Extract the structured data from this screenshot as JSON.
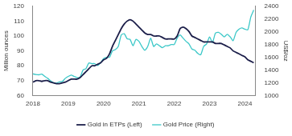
{
  "chart_data": {
    "type": "line",
    "x": [
      2018.0,
      2018.083,
      2018.167,
      2018.25,
      2018.333,
      2018.417,
      2018.5,
      2018.583,
      2018.667,
      2018.75,
      2018.833,
      2018.917,
      2019.0,
      2019.083,
      2019.167,
      2019.25,
      2019.333,
      2019.417,
      2019.5,
      2019.583,
      2019.667,
      2019.75,
      2019.833,
      2019.917,
      2020.0,
      2020.083,
      2020.167,
      2020.25,
      2020.333,
      2020.417,
      2020.5,
      2020.583,
      2020.667,
      2020.75,
      2020.833,
      2020.917,
      2021.0,
      2021.083,
      2021.167,
      2021.25,
      2021.333,
      2021.417,
      2021.5,
      2021.583,
      2021.667,
      2021.75,
      2021.833,
      2021.917,
      2022.0,
      2022.083,
      2022.167,
      2022.25,
      2022.333,
      2022.417,
      2022.5,
      2022.583,
      2022.667,
      2022.75,
      2022.833,
      2022.917,
      2023.0,
      2023.083,
      2023.167,
      2023.25,
      2023.333,
      2023.417,
      2023.5,
      2023.583,
      2023.667,
      2023.75,
      2023.833,
      2023.917,
      2024.0,
      2024.083,
      2024.167,
      2024.25
    ],
    "series": [
      {
        "name": "Gold in ETPs (Left)",
        "color": "#1c1f4a",
        "axis": "y",
        "values": [
          69,
          70,
          70,
          69.5,
          70,
          70,
          69,
          68.5,
          68,
          68,
          68.5,
          69,
          70,
          71,
          71,
          71,
          72,
          74,
          76,
          78,
          80,
          80,
          81,
          82,
          84,
          85,
          88,
          93,
          97,
          101,
          105,
          108,
          110,
          111,
          110,
          108,
          106,
          104,
          102,
          101,
          101,
          100,
          100,
          100,
          99,
          98,
          98,
          98,
          98,
          100,
          105,
          106,
          105,
          103,
          100,
          99,
          98,
          97,
          96,
          96,
          96,
          96,
          95,
          95,
          95,
          94,
          93,
          92,
          90,
          89,
          88,
          87,
          86,
          84,
          83,
          82
        ]
      },
      {
        "name": "Gold Price (Right)",
        "color": "#3cc8c8",
        "axis": "y2",
        "values": [
          1340,
          1330,
          1325,
          1335,
          1300,
          1270,
          1230,
          1200,
          1195,
          1215,
          1220,
          1270,
          1300,
          1320,
          1300,
          1280,
          1285,
          1400,
          1420,
          1510,
          1500,
          1500,
          1470,
          1515,
          1580,
          1600,
          1600,
          1700,
          1720,
          1770,
          1950,
          1970,
          1890,
          1880,
          1780,
          1880,
          1850,
          1770,
          1710,
          1770,
          1900,
          1770,
          1810,
          1780,
          1750,
          1780,
          1780,
          1800,
          1800,
          1900,
          1950,
          1900,
          1850,
          1810,
          1730,
          1710,
          1660,
          1640,
          1770,
          1810,
          1920,
          1830,
          1980,
          1990,
          1960,
          1920,
          1960,
          1920,
          1860,
          1990,
          2040,
          2060,
          2040,
          2030,
          2230,
          2340
        ]
      }
    ],
    "xlim": [
      2018,
      2024.3
    ],
    "xticks": [
      2018,
      2019,
      2020,
      2021,
      2022,
      2023,
      2024
    ],
    "ylim": [
      60,
      120
    ],
    "yticks": [
      60,
      70,
      80,
      90,
      100,
      110,
      120
    ],
    "y_label": "Million ounces",
    "y2lim": [
      1000,
      2400
    ],
    "y2ticks": [
      1000,
      1200,
      1400,
      1600,
      1800,
      2000,
      2200,
      2400
    ],
    "y2_label": "US$/oz",
    "legend": "bottom",
    "grid": false
  }
}
